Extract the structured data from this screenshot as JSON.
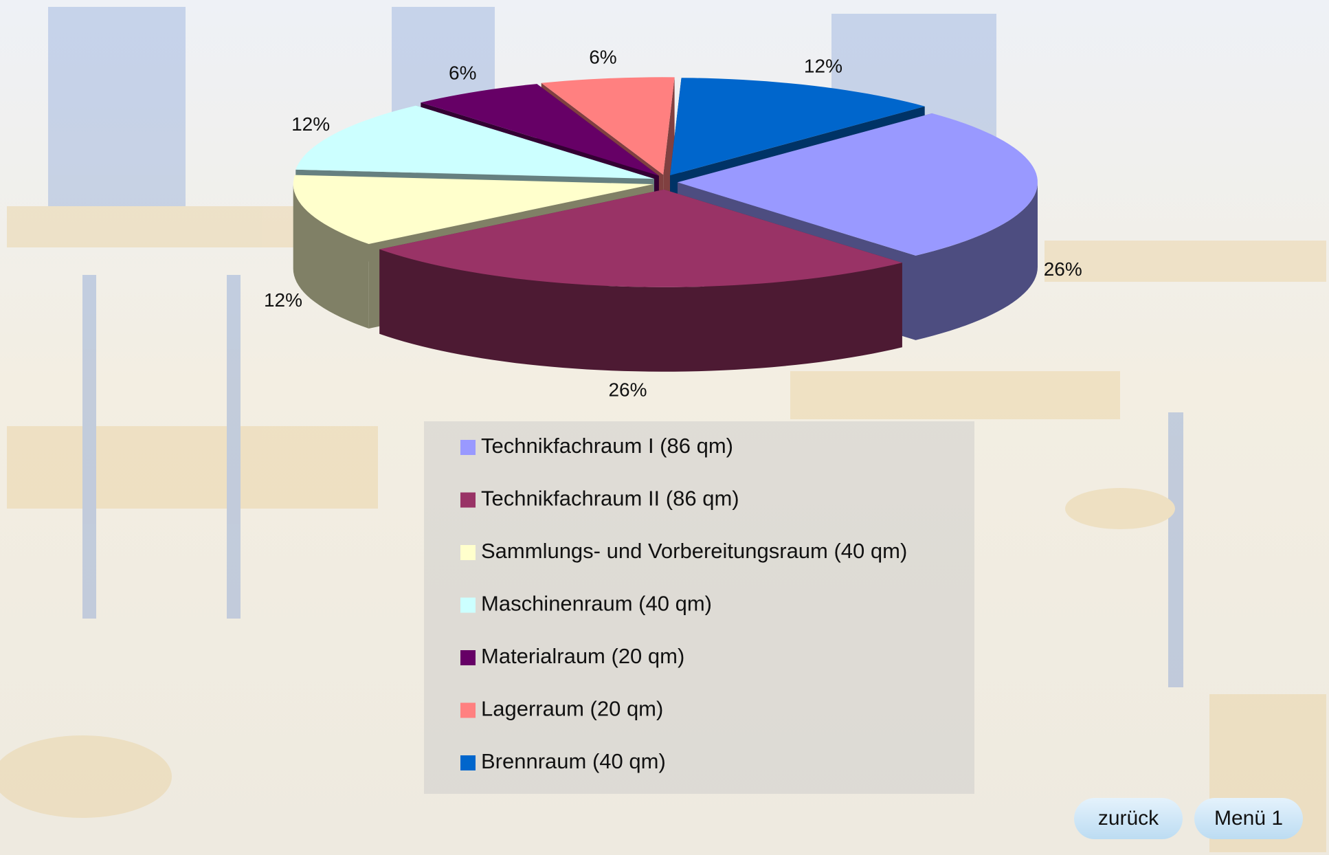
{
  "chart_data": {
    "type": "pie",
    "categories": [
      "Technikfachraum I (86 qm)",
      "Technikfachraum II (86 qm)",
      "Sammlungs- und Vorbereitungsraum (40 qm)",
      "Maschinenraum (40 qm)",
      "Materialraum (20 qm)",
      "Lagerraum (20 qm)",
      "Brennraum (40 qm)"
    ],
    "values": [
      26,
      26,
      12,
      12,
      6,
      6,
      12
    ],
    "value_labels": [
      "26%",
      "26%",
      "12%",
      "12%",
      "6%",
      "6%",
      "12%"
    ],
    "colors": [
      "#9999ff",
      "#993366",
      "#ffffcc",
      "#ccffff",
      "#660066",
      "#ff8080",
      "#0066cc"
    ]
  },
  "buttons": [
    "zurück",
    "Menü 1"
  ]
}
